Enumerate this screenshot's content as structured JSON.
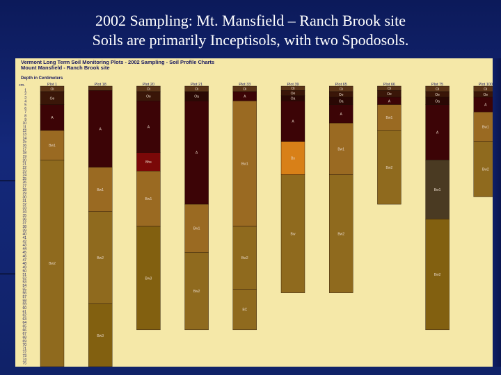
{
  "slide": {
    "title_line1": "2002 Sampling: Mt. Mansfield – Ranch Brook site",
    "title_line2": "Soils are primarily Inceptisols, with two Spodosols."
  },
  "chart_data": {
    "type": "bar",
    "title": "Vermont Long Term Soil Monitoring Plots - 2002 Sampling - Soil Profile Charts",
    "subtitle": "Mount Mansfield - Ranch Brook site",
    "ylabel": "Depth in Centimeters",
    "ylabel_abbrev": "cm.",
    "ylim": [
      0,
      76
    ],
    "y_ticks": [
      1,
      2,
      3,
      4,
      5,
      6,
      7,
      8,
      9,
      10,
      11,
      12,
      13,
      14,
      15,
      16,
      17,
      18,
      19,
      20,
      21,
      22,
      23,
      24,
      25,
      26,
      27,
      28,
      29,
      30,
      31,
      32,
      33,
      34,
      35,
      36,
      37,
      38,
      39,
      40,
      41,
      42,
      43,
      44,
      45,
      46,
      47,
      48,
      49,
      50,
      51,
      52,
      53,
      54,
      55,
      56,
      57,
      58,
      59,
      60,
      61,
      62,
      63,
      64,
      65,
      66,
      67,
      68,
      69,
      70,
      71,
      72,
      73,
      74,
      75
    ],
    "grid": false,
    "horizon_colors": {
      "Oi": "#5a3418",
      "Oe": "#3a1608",
      "Oa": "#2a0804",
      "A": "#3c0406",
      "E": "#b08060",
      "Bhs": "#7a0808",
      "Bs": "#d88018",
      "Bw1": "#9a6a22",
      "Bw2": "#8f6a1e",
      "Bw3": "#826010",
      "Bw": "#8f6a1e",
      "BC": "#8f6a1e",
      "C": "#8f6a1e"
    },
    "plots": [
      {
        "name": "Plot 1",
        "horizons": [
          {
            "label": "Oi",
            "top": 0,
            "bottom": 1.5,
            "color": "#5a3418"
          },
          {
            "label": "Oe",
            "top": 1.5,
            "bottom": 5,
            "color": "#3a1608"
          },
          {
            "label": "A",
            "top": 5,
            "bottom": 12,
            "color": "#3c0406"
          },
          {
            "label": "Bw1",
            "top": 12,
            "bottom": 20,
            "color": "#9a6a22"
          },
          {
            "label": "Bw2",
            "top": 20,
            "bottom": 76,
            "color": "#8f6a1e"
          }
        ]
      },
      {
        "name": "Plot 18",
        "horizons": [
          {
            "label": "",
            "top": 0,
            "bottom": 1.2,
            "color": "#5a3418"
          },
          {
            "label": "A",
            "top": 1.2,
            "bottom": 22,
            "color": "#3c0406"
          },
          {
            "label": "Bw1",
            "top": 22,
            "bottom": 34,
            "color": "#9a6a22"
          },
          {
            "label": "Bw2",
            "top": 34,
            "bottom": 59,
            "color": "#8f6a1e"
          },
          {
            "label": "Bw3",
            "top": 59,
            "bottom": 76,
            "color": "#826010"
          }
        ]
      },
      {
        "name": "Plot 20",
        "horizons": [
          {
            "label": "Oi",
            "top": 0,
            "bottom": 1.5,
            "color": "#5a3418"
          },
          {
            "label": "Oe",
            "top": 1.5,
            "bottom": 4,
            "color": "#3a1608"
          },
          {
            "label": "A",
            "top": 4,
            "bottom": 18,
            "color": "#3c0406"
          },
          {
            "label": "Bhs",
            "top": 18,
            "bottom": 23,
            "color": "#7a0808"
          },
          {
            "label": "Bw1",
            "top": 23,
            "bottom": 38,
            "color": "#9a6a22"
          },
          {
            "label": "Bw3",
            "top": 38,
            "bottom": 66,
            "color": "#826010"
          }
        ]
      },
      {
        "name": "Plot 21",
        "horizons": [
          {
            "label": "Oi",
            "top": 0,
            "bottom": 1.5,
            "color": "#5a3418"
          },
          {
            "label": "Oa",
            "top": 1.5,
            "bottom": 4,
            "color": "#2a0804"
          },
          {
            "label": "A",
            "top": 4,
            "bottom": 32,
            "color": "#3c0406"
          },
          {
            "label": "Bw1",
            "top": 32,
            "bottom": 45,
            "color": "#9a6a22"
          },
          {
            "label": "Bw2",
            "top": 45,
            "bottom": 66,
            "color": "#8f6a1e"
          }
        ]
      },
      {
        "name": "Plot 33",
        "horizons": [
          {
            "label": "Oi",
            "top": 0,
            "bottom": 1.5,
            "color": "#5a3418"
          },
          {
            "label": "A",
            "top": 1.5,
            "bottom": 4,
            "color": "#3c0406"
          },
          {
            "label": "Bw1",
            "top": 4,
            "bottom": 38,
            "color": "#9a6a22"
          },
          {
            "label": "Bw2",
            "top": 38,
            "bottom": 55,
            "color": "#8f6a1e"
          },
          {
            "label": "BC",
            "top": 55,
            "bottom": 66,
            "color": "#8f6a1e"
          }
        ]
      },
      {
        "name": "Plot 39",
        "horizons": [
          {
            "label": "Oi",
            "top": 0,
            "bottom": 1.2,
            "color": "#5a3418"
          },
          {
            "label": "Oe",
            "top": 1.2,
            "bottom": 2.6,
            "color": "#3a1608"
          },
          {
            "label": "Oa",
            "top": 2.6,
            "bottom": 4,
            "color": "#2a0804"
          },
          {
            "label": "A",
            "top": 4,
            "bottom": 15,
            "color": "#3c0406"
          },
          {
            "label": "Bs",
            "top": 15,
            "bottom": 24,
            "color": "#d88018"
          },
          {
            "label": "Bw",
            "top": 24,
            "bottom": 56,
            "color": "#8f6a1e"
          }
        ]
      },
      {
        "name": "Plot 65",
        "horizons": [
          {
            "label": "Oi",
            "top": 0,
            "bottom": 1.5,
            "color": "#5a3418"
          },
          {
            "label": "Oe",
            "top": 1.5,
            "bottom": 3,
            "color": "#3a1608"
          },
          {
            "label": "Oa",
            "top": 3,
            "bottom": 5,
            "color": "#2a0804"
          },
          {
            "label": "A",
            "top": 5,
            "bottom": 10,
            "color": "#3c0406"
          },
          {
            "label": "Bw1",
            "top": 10,
            "bottom": 24,
            "color": "#9a6a22"
          },
          {
            "label": "Bw2",
            "top": 24,
            "bottom": 56,
            "color": "#8f6a1e"
          }
        ]
      },
      {
        "name": "Plot 66",
        "horizons": [
          {
            "label": "Oi",
            "top": 0,
            "bottom": 1.2,
            "color": "#5a3418"
          },
          {
            "label": "Oe",
            "top": 1.2,
            "bottom": 3,
            "color": "#3a1608"
          },
          {
            "label": "A",
            "top": 3,
            "bottom": 5,
            "color": "#3c0406"
          },
          {
            "label": "Bw1",
            "top": 5,
            "bottom": 12,
            "color": "#9a6a22"
          },
          {
            "label": "Bw2",
            "top": 12,
            "bottom": 32,
            "color": "#8f6a1e"
          }
        ]
      },
      {
        "name": "Plot 75",
        "horizons": [
          {
            "label": "Oi",
            "top": 0,
            "bottom": 1.5,
            "color": "#5a3418"
          },
          {
            "label": "Oe",
            "top": 1.5,
            "bottom": 3,
            "color": "#3a1608"
          },
          {
            "label": "Oa",
            "top": 3,
            "bottom": 5,
            "color": "#2a0804"
          },
          {
            "label": "A",
            "top": 5,
            "bottom": 20,
            "color": "#3c0406"
          },
          {
            "label": "Bw1",
            "top": 20,
            "bottom": 36,
            "color": "#4a3a22"
          },
          {
            "label": "Bw2",
            "top": 36,
            "bottom": 66,
            "color": "#826010"
          }
        ]
      },
      {
        "name": "Plot 100",
        "horizons": [
          {
            "label": "Oi",
            "top": 0,
            "bottom": 1.5,
            "color": "#5a3418"
          },
          {
            "label": "Oe",
            "top": 1.5,
            "bottom": 3,
            "color": "#3a1608"
          },
          {
            "label": "A",
            "top": 3,
            "bottom": 7,
            "color": "#3c0406"
          },
          {
            "label": "Bw1",
            "top": 7,
            "bottom": 15,
            "color": "#9a6a22"
          },
          {
            "label": "Bw2",
            "top": 15,
            "bottom": 30,
            "color": "#8f6a1e"
          }
        ]
      }
    ]
  }
}
